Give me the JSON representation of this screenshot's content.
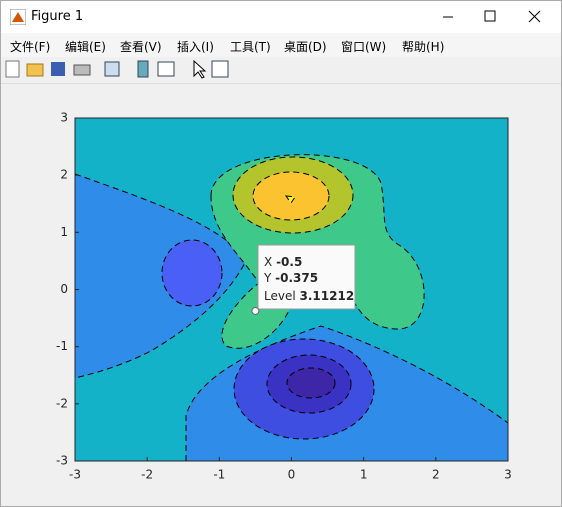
{
  "window": {
    "title": "Figure 1"
  },
  "menu": [
    "文件(F)",
    "编辑(E)",
    "查看(V)",
    "插入(I)",
    "工具(T)",
    "桌面(D)",
    "窗口(W)",
    "帮助(H)"
  ],
  "chart_data": {
    "type": "contour",
    "xlim": [
      -3,
      3
    ],
    "ylim": [
      -3,
      3
    ],
    "xticks": [
      -3,
      -2,
      -1,
      0,
      1,
      2,
      3
    ],
    "yticks": [
      -3,
      -2,
      -1,
      0,
      1,
      2,
      3
    ],
    "datatip": {
      "x_label": "X",
      "x": -0.5,
      "y_label": "Y",
      "y": -0.375,
      "level_label": "Level",
      "level": 3.11212
    }
  }
}
